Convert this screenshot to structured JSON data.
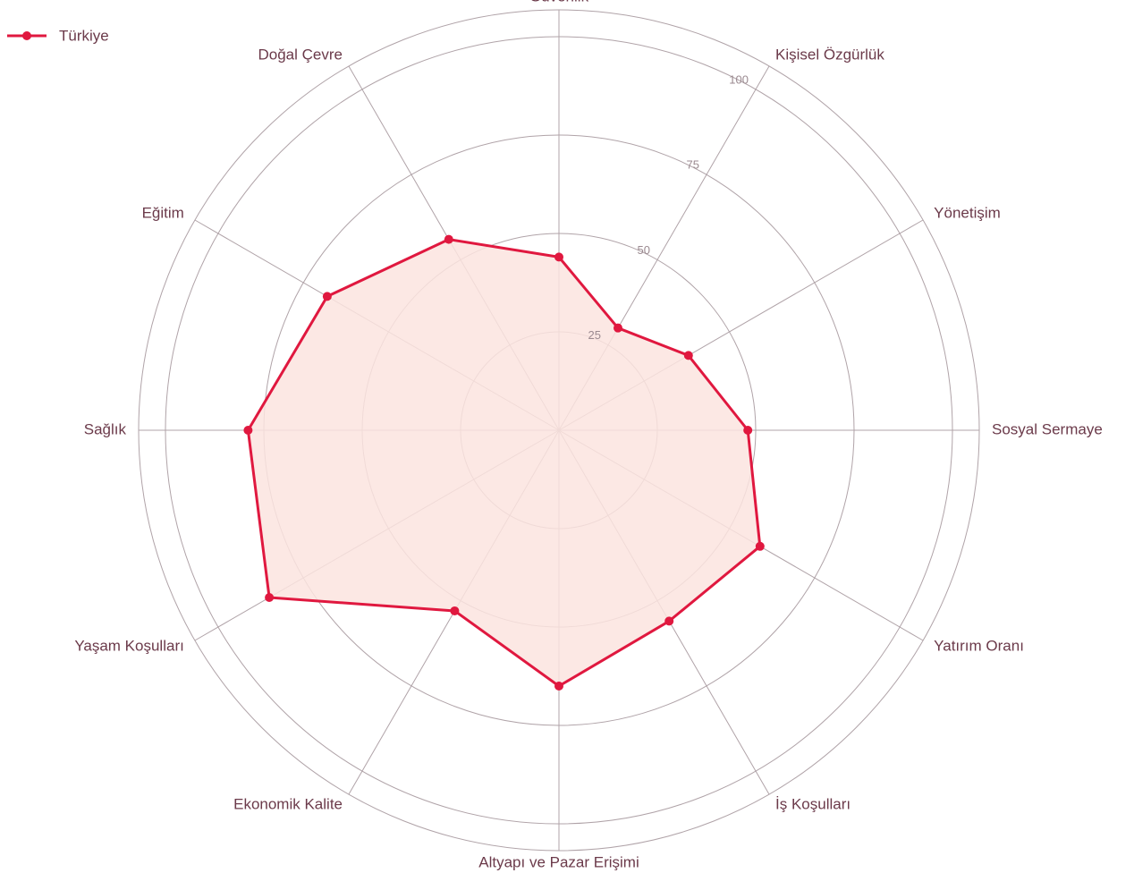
{
  "chart_data": {
    "type": "radar",
    "categories": [
      "Güvenlik",
      "Kişisel Özgürlük",
      "Yönetişim",
      "Sosyal Sermaye",
      "Yatırım Oranı",
      "İş Koşulları",
      "Altyapı ve Pazar Erişimi",
      "Ekonomik Kalite",
      "Yaşam Koşulları",
      "Sağlık",
      "Eğitim",
      "Doğal Çevre"
    ],
    "series": [
      {
        "name": "Türkiye",
        "color": "#e0183f",
        "fill": "#fce4df",
        "values": [
          44,
          30,
          38,
          48,
          59,
          56,
          65,
          53,
          85,
          79,
          68,
          56
        ]
      }
    ],
    "ylim": [
      0,
      100
    ],
    "yticks": [
      25,
      50,
      75,
      100
    ],
    "legend": "top-left"
  }
}
